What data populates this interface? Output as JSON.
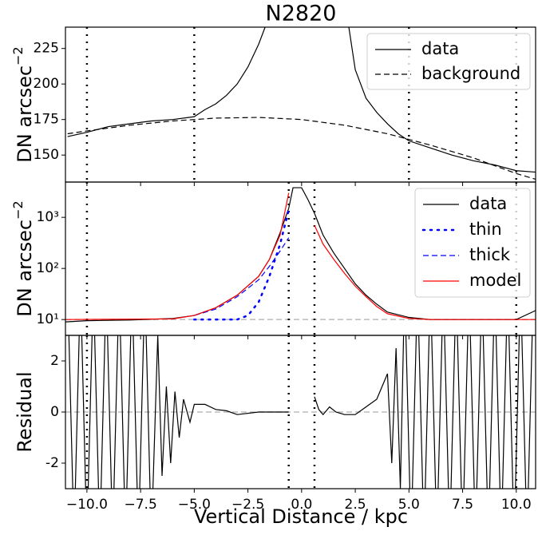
{
  "chart_data": [
    {
      "type": "line",
      "title": "N2820",
      "ylabel": "DN arcsec",
      "ylabel_sup": "−2",
      "xlim": [
        -11,
        10.9
      ],
      "ylim": [
        131,
        240
      ],
      "yticks": [
        150,
        175,
        200,
        225
      ],
      "log_y": false,
      "legend": "upper right",
      "vlines": [
        -10,
        -5,
        5,
        10
      ],
      "series": [
        {
          "name": "data",
          "color": "#000000",
          "linestyle": "solid",
          "x": [
            -10.9,
            -10,
            -9,
            -8,
            -7,
            -6,
            -5,
            -4.5,
            -4,
            -3.5,
            -3,
            -2.5,
            -2,
            -1.7,
            0,
            2.2,
            2.5,
            3,
            3.5,
            4,
            4.5,
            5,
            6,
            7,
            8,
            9,
            10,
            10.9
          ],
          "values": [
            163,
            166,
            170,
            172,
            174,
            175,
            177,
            182,
            186,
            192,
            200,
            212,
            228,
            240,
            null,
            240,
            210,
            190,
            180,
            172,
            165,
            160,
            155,
            150,
            146,
            143,
            139,
            138
          ]
        },
        {
          "name": "background",
          "color": "#000000",
          "linestyle": "dashed",
          "x": [
            -10.9,
            -10,
            -8,
            -6,
            -4,
            -2,
            0,
            2,
            4,
            6,
            8,
            10,
            10.9
          ],
          "values": [
            165,
            167,
            171,
            174,
            176,
            176.5,
            175,
            171,
            165,
            157,
            148,
            137,
            133
          ]
        }
      ]
    },
    {
      "type": "line",
      "ylabel": "DN arcsec",
      "ylabel_sup": "−2",
      "xlim": [
        -11,
        10.9
      ],
      "ylim": [
        4.9,
        4900
      ],
      "log_y": true,
      "legend": "upper right",
      "yticks": [
        {
          "value": 10,
          "label": "10¹"
        },
        {
          "value": 100,
          "label": "10²"
        },
        {
          "value": 1000,
          "label": "10³"
        }
      ],
      "vlines": [
        -10,
        -0.6,
        0.6,
        10
      ],
      "hlines": [
        {
          "value": 10,
          "color": "#bbbbbb"
        }
      ],
      "series": [
        {
          "name": "data",
          "color": "#000000",
          "linestyle": "solid",
          "x": [
            -11,
            -10,
            -8,
            -6,
            -5,
            -4,
            -3,
            -2,
            -1.5,
            -1,
            -0.6,
            -0.4,
            0,
            0.3,
            0.6,
            1,
            1.5,
            2,
            2.5,
            3,
            3.5,
            4,
            5,
            6,
            8,
            10,
            10.9
          ],
          "values": [
            9,
            9.5,
            9.8,
            10.5,
            12,
            17,
            30,
            70,
            150,
            500,
            1500,
            3800,
            3800,
            2200,
            1200,
            450,
            200,
            100,
            50,
            30,
            20,
            14,
            11,
            10,
            10,
            10,
            15
          ]
        },
        {
          "name": "thin",
          "color": "#0000ff",
          "linestyle": "dotted",
          "x": [
            -5,
            -4,
            -3,
            -2.5,
            -2,
            -1.5,
            -1,
            -0.6
          ],
          "values": [
            10,
            10,
            10,
            12,
            22,
            70,
            300,
            1400
          ]
        },
        {
          "name": "thick",
          "color": "#0000ff",
          "linestyle": "dashed",
          "x": [
            -5,
            -4,
            -3,
            -2,
            -1.5,
            -1,
            -0.6
          ],
          "values": [
            12,
            16,
            28,
            60,
            110,
            220,
            400
          ]
        },
        {
          "name": "model",
          "color": "#ff0000",
          "linestyle": "solid",
          "x": [
            -11,
            -6,
            -5,
            -4,
            -3,
            -2,
            -1.5,
            -1,
            -0.6,
            0,
            0.6,
            1,
            1.5,
            2,
            2.5,
            3,
            3.5,
            4,
            5,
            6,
            10.9
          ],
          "values": [
            10,
            10.3,
            12,
            17,
            30,
            70,
            150,
            450,
            3000,
            null,
            700,
            300,
            150,
            80,
            45,
            28,
            18,
            13,
            10.5,
            10,
            10
          ]
        }
      ]
    },
    {
      "type": "line",
      "ylabel": "Residual",
      "xlabel": "Vertical Distance / kpc",
      "xlim": [
        -11,
        10.9
      ],
      "ylim": [
        -3,
        3
      ],
      "yticks": [
        -2,
        0,
        2
      ],
      "log_y": false,
      "xticks": [
        {
          "value": -10,
          "label": "−10.0"
        },
        {
          "value": -7.5,
          "label": "−7.5"
        },
        {
          "value": -5,
          "label": "−5.0"
        },
        {
          "value": -2.5,
          "label": "−2.5"
        },
        {
          "value": 0,
          "label": "0.0"
        },
        {
          "value": 2.5,
          "label": "2.5"
        },
        {
          "value": 5,
          "label": "5.0"
        },
        {
          "value": 7.5,
          "label": "7.5"
        },
        {
          "value": 10,
          "label": "10.0"
        }
      ],
      "vlines": [
        -10,
        -0.6,
        0.6,
        10
      ],
      "hlines": [
        {
          "value": 0,
          "color": "#bbbbbb"
        }
      ],
      "series": [
        {
          "color": "#000000",
          "linestyle": "solid",
          "x": [
            -10.9,
            -10.6,
            -10.3,
            -10,
            -9.7,
            -9.4,
            -9.1,
            -8.8,
            -8.5,
            -8.2,
            -7.9,
            -7.6,
            -7.3,
            -7,
            -6.7,
            -6.5,
            -6.3,
            -6.1,
            -5.9,
            -5.7,
            -5.5,
            -5.2,
            -5,
            -4.5,
            -4,
            -3.5,
            -3,
            -2,
            -1,
            -0.6,
            0,
            0.6,
            0.8,
            1,
            1.3,
            1.6,
            2,
            2.5,
            3,
            3.5,
            4,
            4.2,
            4.4,
            4.6,
            4.8,
            5.1,
            5.4,
            5.7,
            6,
            6.3,
            6.6,
            6.9,
            7.2,
            7.5,
            7.8,
            8.1,
            8.4,
            8.7,
            9,
            9.3,
            9.6,
            9.9,
            10.2,
            10.5,
            10.8
          ],
          "values": [
            5,
            -5,
            5,
            -5,
            5,
            -5,
            5,
            -5,
            5,
            -5,
            5,
            -5,
            5,
            -5,
            3,
            -2.5,
            1,
            -2,
            0.8,
            -1,
            0.5,
            -0.4,
            0.3,
            0.3,
            0.1,
            0.05,
            -0.1,
            0,
            0,
            0,
            null,
            0.6,
            0.1,
            -0.1,
            0.2,
            0,
            -0.1,
            -0.1,
            0.2,
            0.5,
            1.5,
            -2,
            2.5,
            -3,
            5,
            -5,
            5,
            -5,
            5,
            -5,
            5,
            -5,
            5,
            -5,
            5,
            -5,
            5,
            -5,
            5,
            -5,
            5,
            -5,
            5,
            -5,
            5
          ]
        }
      ]
    }
  ]
}
